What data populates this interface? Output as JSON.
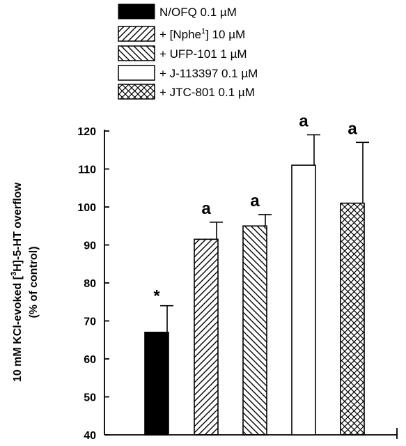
{
  "chart_data": {
    "type": "bar",
    "categories": [
      "N/OFQ 0.1 µM",
      "+ [Nphe1] 10 µM",
      "+ UFP-101 1 µM",
      "+ J-113397 0.1 µM",
      "+ JTC-801 0.1 µM"
    ],
    "legend_labels": [
      "N/OFQ 0.1 µM",
      "+ [Nphe",
      "] 10 µM",
      "+ UFP-101 1 µM",
      "+ J-113397 0.1 µM",
      "+ JTC-801 0.1 µM"
    ],
    "superscripts": {
      "nphe": "1",
      "h3": "3"
    },
    "values": [
      67,
      91.5,
      95,
      111,
      101
    ],
    "errors": [
      7,
      4.5,
      3,
      8,
      16
    ],
    "annotations": [
      "*",
      "a",
      "a",
      "a",
      "a"
    ],
    "patterns": [
      "solid",
      "diag-forward",
      "diag-back",
      "none",
      "crosshatch"
    ],
    "ylabel_line1_a": "10 mM KCl-evoked [",
    "ylabel_line1_b": "H]-5-HT overflow",
    "ylabel_line2": "(% of control)",
    "ylim": [
      40,
      120
    ],
    "yticks": [
      "40",
      "50",
      "60",
      "70",
      "80",
      "90",
      "100",
      "110",
      "120"
    ],
    "legend_position": "top",
    "grid": false
  }
}
